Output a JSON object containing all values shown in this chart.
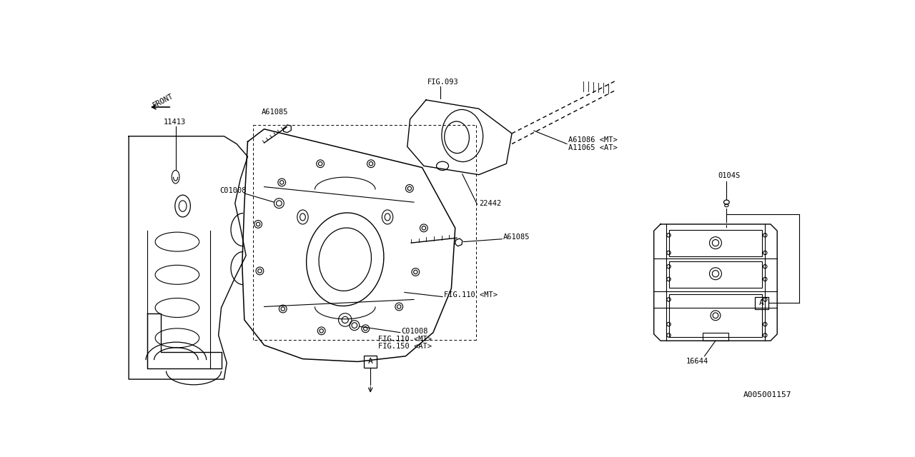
{
  "bg_color": "#ffffff",
  "line_color": "#000000",
  "text_color": "#000000",
  "fig_ref": "A005001157",
  "labels": {
    "front": "FRONT",
    "A61085_top": "A61085",
    "A61085_mid": "A61085",
    "C01008_top": "C01008",
    "C01008_bot": "C01008",
    "fig093": "FIG.093",
    "fig110_mt": "FIG.110 <MT>",
    "fig110_mt2": "FIG.110 <MT>",
    "fig150_at": "FIG.150 <AT>",
    "A61086_mt": "A61086 <MT>",
    "A11065_at": "A11065 <AT>",
    "n22442": "22442",
    "n11413": "11413",
    "n0104s": "0104S",
    "n16644": "16644",
    "label_A1": "A",
    "label_A2": "A"
  }
}
